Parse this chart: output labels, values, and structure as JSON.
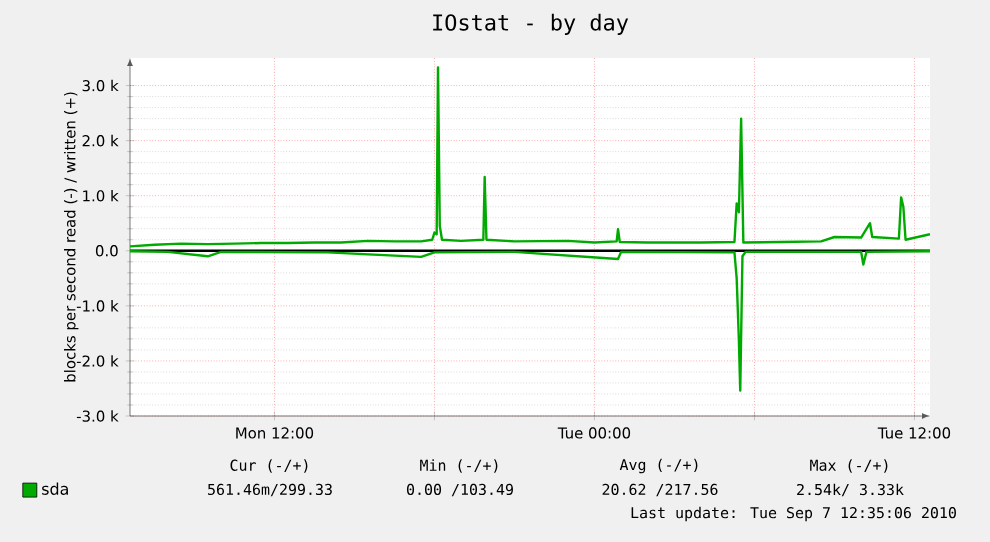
{
  "chart_data": {
    "type": "line",
    "title": "IOstat - by day",
    "ylabel": "blocks per second read (-) / written (+)",
    "xlim": [
      "2010-09-06T06:35",
      "2010-09-07T12:35"
    ],
    "xticks": [
      {
        "value": "2010-09-06T12:00",
        "label": "Mon 12:00"
      },
      {
        "value": "2010-09-06T18:00",
        "label": null
      },
      {
        "value": "2010-09-07T00:00",
        "label": "Tue 00:00"
      },
      {
        "value": "2010-09-07T06:00",
        "label": null
      },
      {
        "value": "2010-09-07T12:00",
        "label": "Tue 12:00"
      }
    ],
    "ylim": [
      -3000,
      3500
    ],
    "yticks": [
      {
        "value": -3000,
        "label": "-3.0 k"
      },
      {
        "value": -2000,
        "label": "-2.0 k"
      },
      {
        "value": -1000,
        "label": "-1.0 k"
      },
      {
        "value": 0,
        "label": "0.0"
      },
      {
        "value": 1000,
        "label": "1.0 k"
      },
      {
        "value": 2000,
        "label": "2.0 k"
      },
      {
        "value": 3000,
        "label": "3.0 k"
      }
    ],
    "grid": true,
    "legend": "bottom left",
    "ref_lines": [
      {
        "axis": "y",
        "value": 0,
        "color": "#000000"
      }
    ],
    "series": [
      {
        "name": "sda",
        "color": "#00aa00",
        "x": [
          "2010-09-06T06:35",
          "2010-09-06T07:30",
          "2010-09-06T08:30",
          "2010-09-06T09:30",
          "2010-09-06T10:30",
          "2010-09-06T11:30",
          "2010-09-06T12:30",
          "2010-09-06T13:30",
          "2010-09-06T14:30",
          "2010-09-06T15:30",
          "2010-09-06T16:30",
          "2010-09-06T17:30",
          "2010-09-06T17:55",
          "2010-09-06T18:00",
          "2010-09-06T18:05",
          "2010-09-06T18:08",
          "2010-09-06T18:12",
          "2010-09-06T18:17",
          "2010-09-06T19:00",
          "2010-09-06T19:50",
          "2010-09-06T19:53",
          "2010-09-06T19:57",
          "2010-09-06T21:00",
          "2010-09-06T23:00",
          "2010-09-07T00:00",
          "2010-09-07T00:50",
          "2010-09-07T00:53",
          "2010-09-07T00:57",
          "2010-09-07T02:00",
          "2010-09-07T04:00",
          "2010-09-07T05:15",
          "2010-09-07T05:20",
          "2010-09-07T05:25",
          "2010-09-07T05:30",
          "2010-09-07T05:35",
          "2010-09-07T07:00",
          "2010-09-07T08:30",
          "2010-09-07T09:00",
          "2010-09-07T10:00",
          "2010-09-07T10:20",
          "2010-09-07T10:25",
          "2010-09-07T11:25",
          "2010-09-07T11:30",
          "2010-09-07T11:35",
          "2010-09-07T11:40",
          "2010-09-07T12:35"
        ],
        "values": [
          80,
          110,
          130,
          120,
          130,
          140,
          140,
          150,
          150,
          180,
          170,
          170,
          200,
          330,
          300,
          3330,
          450,
          200,
          180,
          200,
          1340,
          200,
          170,
          180,
          150,
          170,
          390,
          160,
          150,
          150,
          160,
          860,
          700,
          2400,
          150,
          160,
          170,
          250,
          240,
          500,
          250,
          220,
          970,
          800,
          200,
          300
        ]
      },
      {
        "color": "#00aa00",
        "x": [
          "2010-09-06T06:35",
          "2010-09-06T08:00",
          "2010-09-06T09:30",
          "2010-09-06T10:00",
          "2010-09-06T14:00",
          "2010-09-06T17:30",
          "2010-09-06T18:00",
          "2010-09-06T21:00",
          "2010-09-07T00:53",
          "2010-09-07T01:00",
          "2010-09-07T05:15",
          "2010-09-07T05:20",
          "2010-09-07T05:25",
          "2010-09-07T05:28",
          "2010-09-07T05:33",
          "2010-09-07T05:40",
          "2010-09-07T10:00",
          "2010-09-07T10:05",
          "2010-09-07T10:12",
          "2010-09-07T12:35"
        ],
        "values": [
          -10,
          -20,
          -100,
          -20,
          -30,
          -110,
          -30,
          -20,
          -150,
          -20,
          -30,
          -500,
          -1640,
          -2540,
          -100,
          -20,
          -20,
          -250,
          -20,
          -10
        ]
      }
    ],
    "annotations": [
      "Cur (-/+)",
      "Min (-/+)",
      "Avg (-/+)",
      "Max (-/+)",
      "561.46m/299.33",
      "0.00 /103.49",
      "20.62 /217.56",
      "2.54k/  3.33k",
      "Last update: Tue Sep  7 12:35:06 2010"
    ]
  }
}
